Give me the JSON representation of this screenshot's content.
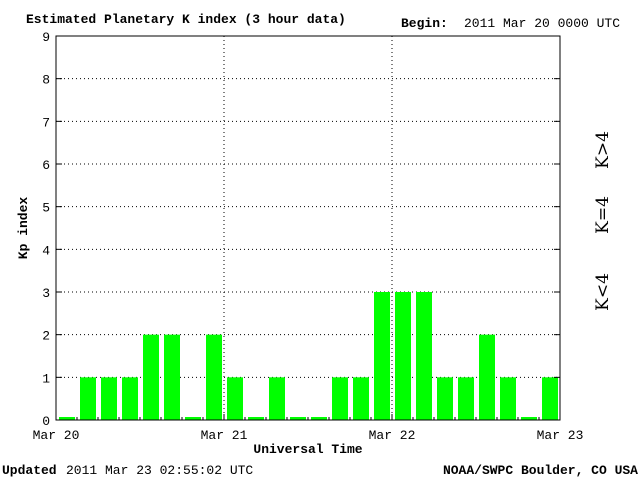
{
  "header": {
    "title": "Estimated Planetary K index (3 hour data)",
    "begin_label": "Begin:",
    "begin_value": "2011 Mar 20 0000 UTC"
  },
  "footer": {
    "updated_label": "Updated",
    "updated_value": "2011 Mar 23 02:55:02 UTC",
    "source": "NOAA/SWPC Boulder, CO USA"
  },
  "legend": {
    "items": [
      {
        "label": "K>4",
        "color": "#ff2a00"
      },
      {
        "label": "K=4",
        "color": "#ffd400"
      },
      {
        "label": "K<4",
        "color": "#22ee22"
      }
    ]
  },
  "colors": {
    "bar": "#00ff00",
    "axis": "#000000",
    "grid": "#000000"
  },
  "chart_data": {
    "type": "bar",
    "title": "Estimated Planetary K index (3 hour data)",
    "xlabel": "Universal Time",
    "ylabel": "Kp index",
    "ylim": [
      0,
      9
    ],
    "yticks": [
      0,
      1,
      2,
      3,
      4,
      5,
      6,
      7,
      8,
      9
    ],
    "xticks": [
      "Mar 20",
      "Mar 21",
      "Mar 22",
      "Mar 23"
    ],
    "grid": true,
    "legend_placement": "right",
    "bar_interval_hours": 3,
    "values": [
      0,
      1,
      1,
      1,
      2,
      2,
      0,
      2,
      1,
      0,
      1,
      0,
      0,
      1,
      1,
      3,
      3,
      3,
      1,
      1,
      2,
      1,
      0,
      1
    ]
  }
}
